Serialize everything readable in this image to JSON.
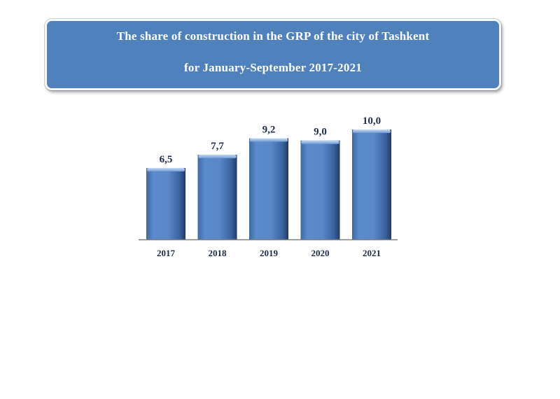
{
  "title": {
    "line1": "The share of construction in the GRP of the city of Tashkent",
    "line2": "for January-September 2017-2021"
  },
  "chart_data": {
    "type": "bar",
    "categories": [
      "2017",
      "2018",
      "2019",
      "2020",
      "2021"
    ],
    "values": [
      6.5,
      7.7,
      9.2,
      9.0,
      10.0
    ],
    "value_labels": [
      "6,5",
      "7,7",
      "9,2",
      "9,0",
      "10,0"
    ],
    "title": "The share of construction in the GRP of the city of Tashkent for January-September 2017-2021",
    "xlabel": "",
    "ylabel": "",
    "ylim": [
      0,
      10
    ],
    "grid": false,
    "legend": "none"
  },
  "colors": {
    "bar": "#4f81bd",
    "bar_light": "#8db3e2",
    "bar_dark": "#1f3a66",
    "label": "#1f2d4d",
    "banner": "#4f81bd"
  }
}
